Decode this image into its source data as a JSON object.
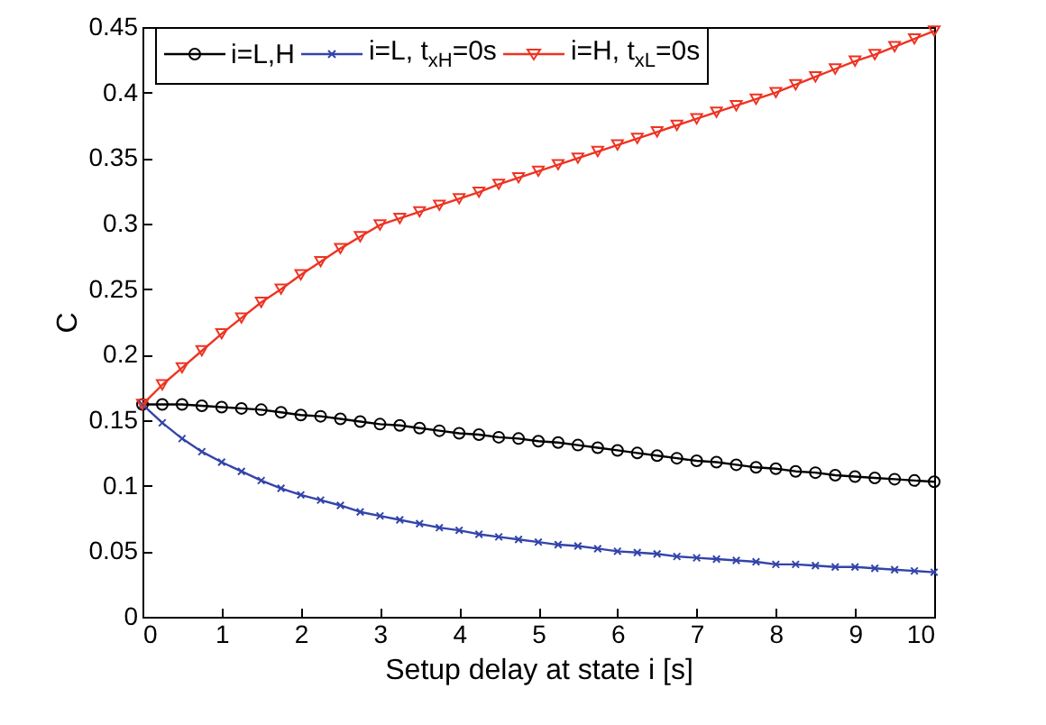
{
  "chart_data": {
    "type": "line",
    "xlabel": "Setup delay at state i [s]",
    "ylabel": "C",
    "x": [
      0,
      0.25,
      0.5,
      0.75,
      1,
      1.25,
      1.5,
      1.75,
      2,
      2.25,
      2.5,
      2.75,
      3,
      3.25,
      3.5,
      3.75,
      4,
      4.25,
      4.5,
      4.75,
      5,
      5.25,
      5.5,
      5.75,
      6,
      6.25,
      6.5,
      6.75,
      7,
      7.25,
      7.5,
      7.75,
      8,
      8.25,
      8.5,
      8.75,
      9,
      9.25,
      9.5,
      9.75,
      10
    ],
    "series": [
      {
        "name": "i=L,H",
        "color": "#000000",
        "marker": "circle",
        "values": [
          0.162,
          0.162,
          0.162,
          0.161,
          0.16,
          0.159,
          0.158,
          0.156,
          0.154,
          0.153,
          0.151,
          0.149,
          0.147,
          0.146,
          0.144,
          0.142,
          0.14,
          0.139,
          0.137,
          0.136,
          0.134,
          0.133,
          0.131,
          0.129,
          0.127,
          0.125,
          0.123,
          0.121,
          0.119,
          0.118,
          0.116,
          0.114,
          0.113,
          0.111,
          0.11,
          0.108,
          0.107,
          0.106,
          0.105,
          0.104,
          0.103
        ]
      },
      {
        "name": "i=L, t$_{xH}$=0s",
        "color": "#3344aa",
        "marker": "cross",
        "values": [
          0.162,
          0.148,
          0.136,
          0.126,
          0.118,
          0.111,
          0.104,
          0.098,
          0.093,
          0.089,
          0.085,
          0.08,
          0.077,
          0.074,
          0.071,
          0.068,
          0.066,
          0.063,
          0.061,
          0.059,
          0.057,
          0.055,
          0.054,
          0.052,
          0.05,
          0.049,
          0.048,
          0.046,
          0.045,
          0.044,
          0.043,
          0.042,
          0.04,
          0.04,
          0.039,
          0.038,
          0.038,
          0.037,
          0.036,
          0.035,
          0.034
        ]
      },
      {
        "name": "i=H, t$_{xL}$=0s",
        "color": "#ee3322",
        "marker": "triangle",
        "values": [
          0.162,
          0.177,
          0.19,
          0.203,
          0.216,
          0.228,
          0.24,
          0.25,
          0.261,
          0.271,
          0.281,
          0.29,
          0.299,
          0.304,
          0.309,
          0.314,
          0.319,
          0.324,
          0.33,
          0.335,
          0.34,
          0.345,
          0.35,
          0.355,
          0.36,
          0.365,
          0.37,
          0.375,
          0.38,
          0.385,
          0.39,
          0.395,
          0.4,
          0.406,
          0.412,
          0.418,
          0.424,
          0.429,
          0.435,
          0.441,
          0.447
        ]
      }
    ],
    "xlim": [
      0,
      10
    ],
    "xticks": [
      0,
      1,
      2,
      3,
      4,
      5,
      6,
      7,
      8,
      9,
      10
    ],
    "ylim": [
      0,
      0.45
    ],
    "yticks": [
      0,
      0.05,
      0.1,
      0.15,
      0.2,
      0.25,
      0.3,
      0.35,
      0.4,
      0.45
    ],
    "legend": "top left",
    "grid": false
  }
}
